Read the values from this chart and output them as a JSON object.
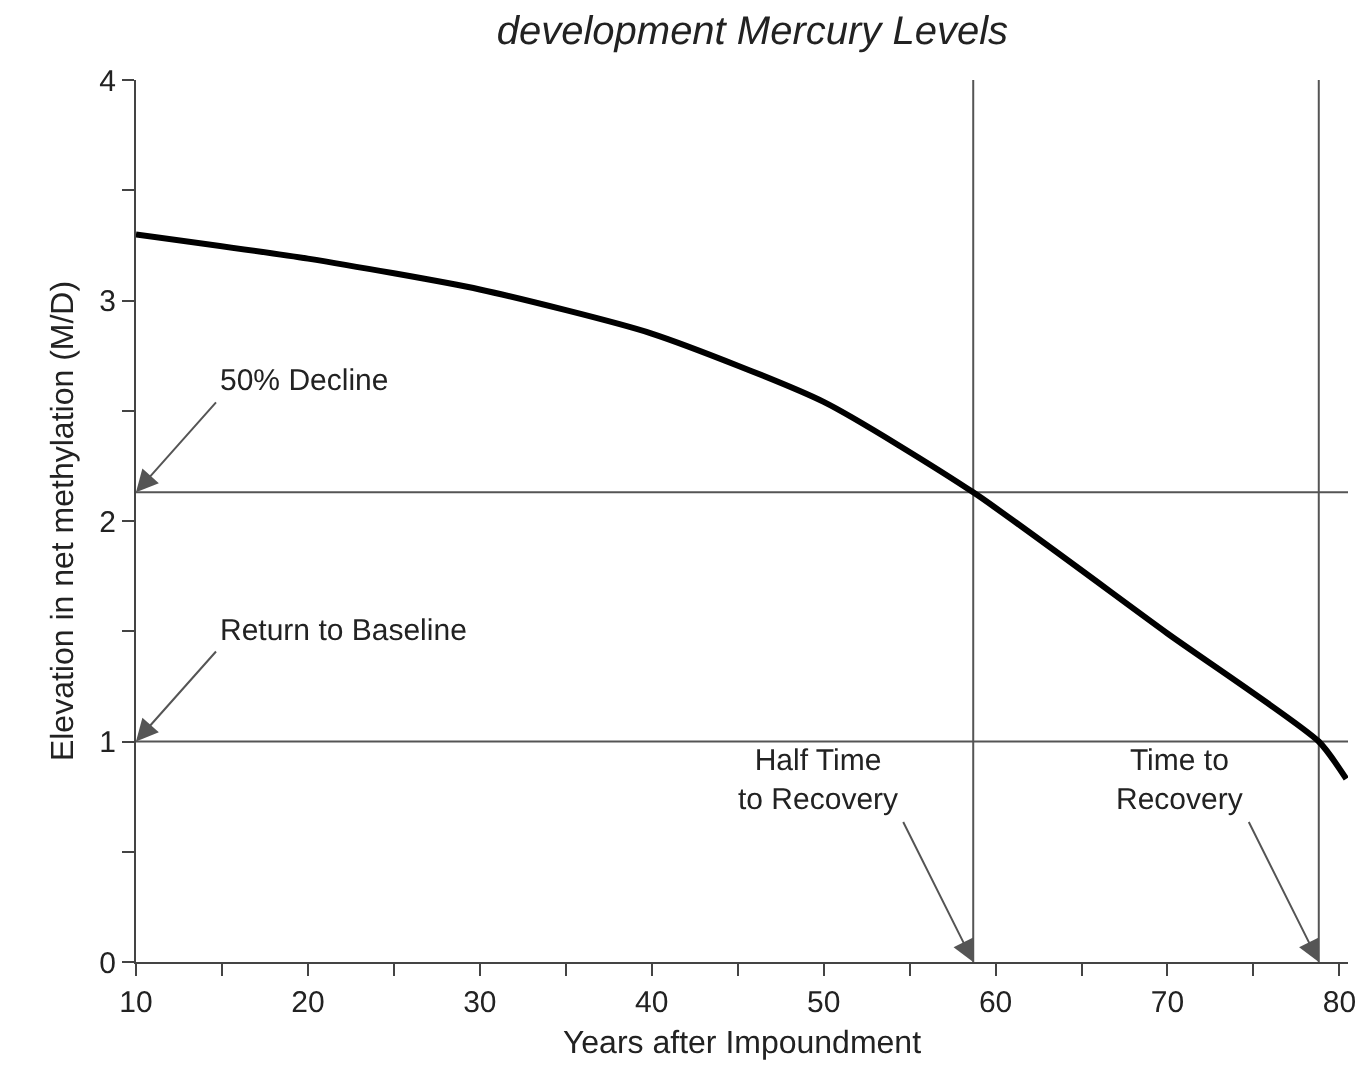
{
  "chart_data": {
    "type": "line",
    "title": "development Mercury Levels",
    "xlabel": "Years after Impoundment",
    "ylabel": "Elevation in net methylation (M/D)",
    "x": [
      10,
      20,
      30,
      40,
      50,
      58.7,
      70,
      78.8,
      80.4
    ],
    "series": [
      {
        "color": "#000000",
        "values": [
          3.3,
          3.19,
          3.05,
          2.85,
          2.54,
          2.13,
          1.49,
          1.0,
          0.83
        ]
      }
    ],
    "xlim": [
      10,
      80.5
    ],
    "ylim": [
      0,
      4
    ],
    "xticks": [
      10,
      {
        "value": 15,
        "label": null
      },
      20,
      {
        "value": 25,
        "label": null
      },
      30,
      {
        "value": 35,
        "label": null
      },
      40,
      {
        "value": 45,
        "label": null
      },
      50,
      {
        "value": 55,
        "label": null
      },
      60,
      {
        "value": 65,
        "label": null
      },
      70,
      {
        "value": 75,
        "label": null
      },
      80
    ],
    "yticks": [
      0,
      {
        "value": 0.5,
        "label": null
      },
      1,
      {
        "value": 1.5,
        "label": null
      },
      2,
      {
        "value": 2.5,
        "label": null
      },
      3,
      {
        "value": 3.5,
        "label": null
      },
      4
    ],
    "ref_lines": [
      {
        "axis": "y",
        "value": 2.13,
        "color": "#555555"
      },
      {
        "axis": "y",
        "value": 1,
        "color": "#555555"
      },
      {
        "axis": "x",
        "value": 58.7,
        "color": "#555555"
      },
      {
        "axis": "x",
        "value": 78.8,
        "color": "#555555"
      }
    ],
    "annotations": [
      {
        "text": "50% Decline",
        "x": 10,
        "y": 2.13
      },
      {
        "text": "Return to Baseline",
        "x": 10,
        "y": 1
      },
      {
        "text": "Half Time\nto Recovery",
        "x": 58.7,
        "y": 0
      },
      {
        "text": "Time to\nRecovery",
        "x": 78.8,
        "y": 0
      }
    ],
    "grid": false,
    "marker": "none",
    "line_style": "solid"
  }
}
